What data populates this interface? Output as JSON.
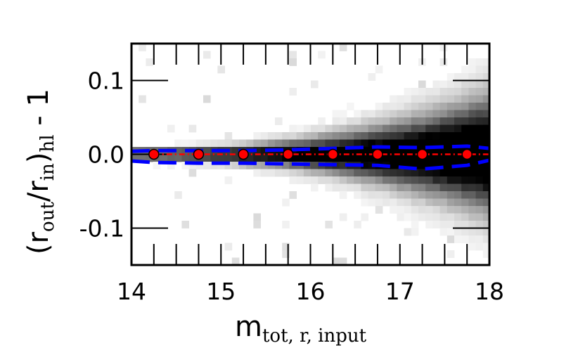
{
  "chart_data": {
    "type": "scatter",
    "xlabel": {
      "main": "m",
      "sub": "tot, r, input"
    },
    "ylabel": {
      "open": "(r",
      "sub1": "out",
      "slash": "/r",
      "sub2": "in",
      "close": ")",
      "sub3": "hl",
      "tail": " - 1"
    },
    "xlim": [
      14.0,
      18.0
    ],
    "ylim": [
      -0.15,
      0.15
    ],
    "x_ticks": [
      14,
      15,
      16,
      17,
      18
    ],
    "x_tick_labels": [
      "14",
      "15",
      "16",
      "17",
      "18"
    ],
    "y_ticks": [
      -0.1,
      0.0,
      0.1
    ],
    "y_tick_labels": [
      "-0.1",
      "0.0",
      "0.1"
    ],
    "grid": false,
    "median_points": {
      "x": [
        14.25,
        14.75,
        15.25,
        15.75,
        16.25,
        16.75,
        17.25,
        17.75
      ],
      "y": [
        0.0,
        0.0,
        0.0,
        0.0,
        0.0,
        0.0,
        0.0,
        0.0
      ],
      "color": "#ff0000"
    },
    "scatter_band": {
      "x": [
        14.0,
        14.25,
        14.75,
        15.25,
        15.75,
        16.25,
        16.75,
        17.25,
        17.75,
        18.0
      ],
      "upper": [
        0.004,
        0.005,
        0.005,
        0.005,
        0.006,
        0.008,
        0.01,
        0.009,
        0.011,
        0.008
      ],
      "lower": [
        -0.009,
        -0.011,
        -0.012,
        -0.012,
        -0.013,
        -0.014,
        -0.015,
        -0.02,
        -0.015,
        -0.008
      ],
      "color": "#0000ff"
    },
    "histogram_color": "#000000"
  }
}
